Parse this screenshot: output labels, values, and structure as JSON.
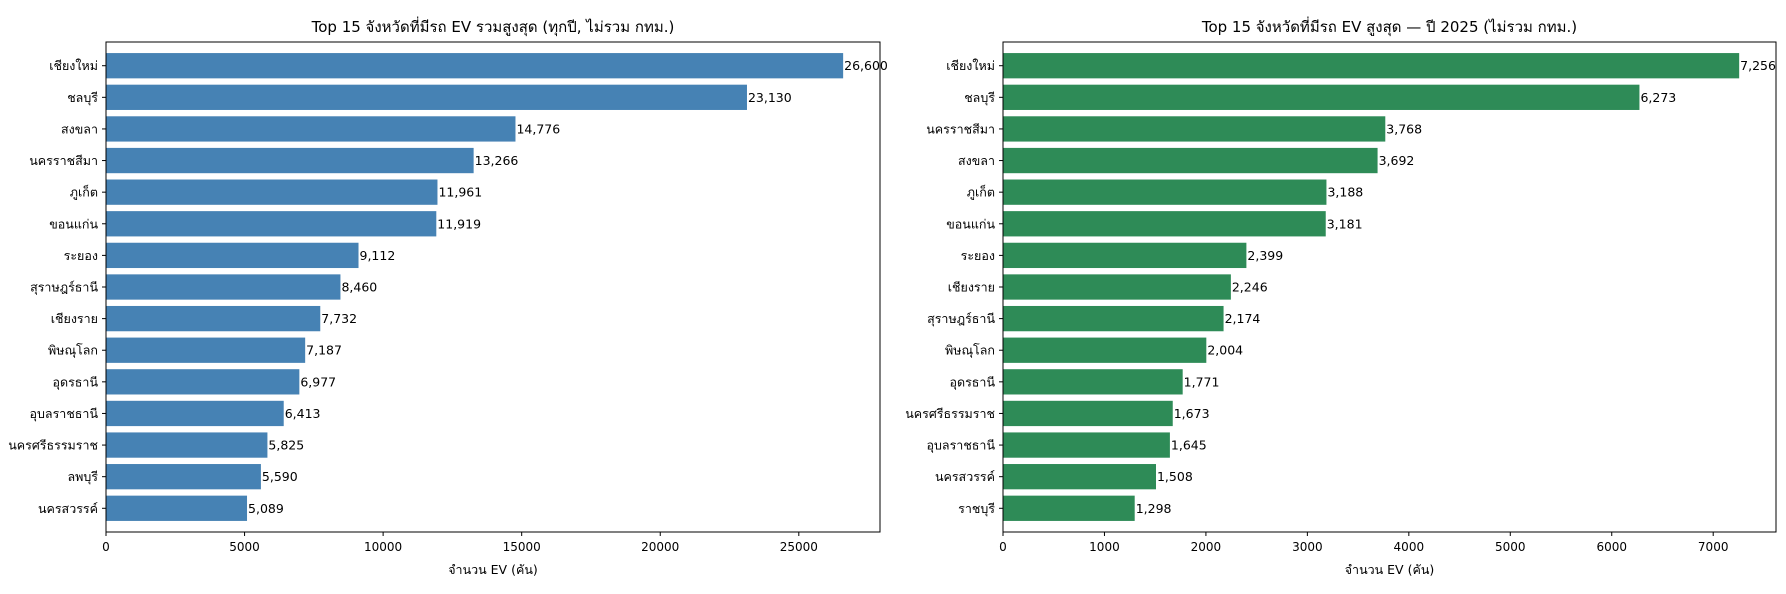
{
  "chart_data": [
    {
      "type": "bar",
      "orientation": "horizontal",
      "title": "Top 15 จังหวัดที่มีรถ EV รวมสูงสุด (ทุกปี, ไม่รวม กทม.)",
      "xlabel": "จำนวน EV (คัน)",
      "ylabel": "",
      "categories": [
        "เชียงใหม่",
        "ชลบุรี",
        "สงขลา",
        "นครราชสีมา",
        "ภูเก็ต",
        "ขอนแก่น",
        "ระยอง",
        "สุราษฎร์ธานี",
        "เชียงราย",
        "พิษณุโลก",
        "อุดรธานี",
        "อุบลราชธานี",
        "นครศรีธรรมราช",
        "ลพบุรี",
        "นครสวรรค์"
      ],
      "values": [
        26600,
        23130,
        14776,
        13266,
        11961,
        11919,
        9112,
        8460,
        7732,
        7187,
        6977,
        6413,
        5825,
        5590,
        5089
      ],
      "value_labels": [
        "26,600",
        "23,130",
        "14,776",
        "13,266",
        "11,961",
        "11,919",
        "9,112",
        "8,460",
        "7,732",
        "7,187",
        "6,977",
        "6,413",
        "5,825",
        "5,590",
        "5,089"
      ],
      "xlim": [
        0,
        27930
      ],
      "xticks": [
        0,
        5000,
        10000,
        15000,
        20000,
        25000
      ],
      "xtick_labels": [
        "0",
        "5000",
        "10000",
        "15000",
        "20000",
        "25000"
      ],
      "color": "#4682b4",
      "grid": false
    },
    {
      "type": "bar",
      "orientation": "horizontal",
      "title": "Top 15 จังหวัดที่มีรถ EV สูงสุด — ปี 2025 (ไม่รวม กทม.)",
      "xlabel": "จำนวน EV (คัน)",
      "ylabel": "",
      "categories": [
        "เชียงใหม่",
        "ชลบุรี",
        "นครราชสีมา",
        "สงขลา",
        "ภูเก็ต",
        "ขอนแก่น",
        "ระยอง",
        "เชียงราย",
        "สุราษฎร์ธานี",
        "พิษณุโลก",
        "อุดรธานี",
        "นครศรีธรรมราช",
        "อุบลราชธานี",
        "นครสวรรค์",
        "ราชบุรี"
      ],
      "values": [
        7256,
        6273,
        3768,
        3692,
        3188,
        3181,
        2399,
        2246,
        2174,
        2004,
        1771,
        1673,
        1645,
        1508,
        1298
      ],
      "value_labels": [
        "7,256",
        "6,273",
        "3,768",
        "3,692",
        "3,188",
        "3,181",
        "2,399",
        "2,246",
        "2,174",
        "2,004",
        "1,771",
        "1,673",
        "1,645",
        "1,508",
        "1,298"
      ],
      "xlim": [
        0,
        7619
      ],
      "xticks": [
        0,
        1000,
        2000,
        3000,
        4000,
        5000,
        6000,
        7000
      ],
      "xtick_labels": [
        "0",
        "1000",
        "2000",
        "3000",
        "4000",
        "5000",
        "6000",
        "7000"
      ],
      "color": "#2e8b57",
      "grid": false
    }
  ]
}
